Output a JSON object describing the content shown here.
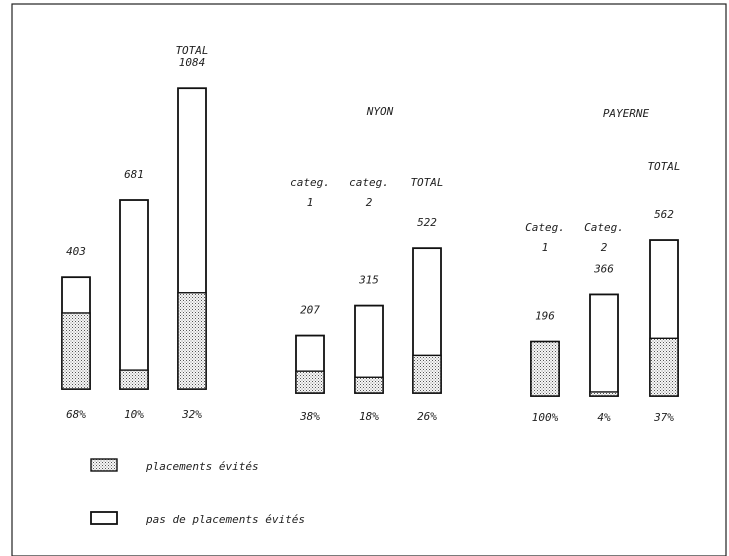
{
  "chart_data": {
    "type": "bar",
    "stacked": true,
    "legend_position": "bottom-left",
    "grid": false,
    "legend": [
      {
        "key": "avoided",
        "label": "placements évités",
        "pattern": "dotted"
      },
      {
        "key": "not_avoided",
        "label": "pas de placements évités",
        "pattern": "empty"
      }
    ],
    "groups": [
      {
        "name": "",
        "bars": [
          {
            "label": "",
            "total": 403,
            "total_label": "403",
            "percent": 68,
            "percent_label": "68%"
          },
          {
            "label": "",
            "total": 681,
            "total_label": "681",
            "percent": 10,
            "percent_label": "10%"
          },
          {
            "label": "TOTAL",
            "total": 1084,
            "total_label": "1084",
            "percent": 32,
            "percent_label": "32%"
          }
        ]
      },
      {
        "name": "NYON",
        "bars": [
          {
            "label": "categ.\n1",
            "total": 207,
            "total_label": "207",
            "percent": 38,
            "percent_label": "38%"
          },
          {
            "label": "categ.\n2",
            "total": 315,
            "total_label": "315",
            "percent": 18,
            "percent_label": "18%"
          },
          {
            "label": "TOTAL",
            "total": 522,
            "total_label": "522",
            "percent": 26,
            "percent_label": "26%"
          }
        ]
      },
      {
        "name": "PAYERNE",
        "bars": [
          {
            "label": "Categ.\n1",
            "total": 196,
            "total_label": "196",
            "percent": 100,
            "percent_label": "100%"
          },
          {
            "label": "Categ.\n2",
            "total": 366,
            "total_label": "366",
            "percent": 4,
            "percent_label": "4%"
          },
          {
            "label": "TOTAL",
            "total": 562,
            "total_label": "562",
            "percent": 37,
            "percent_label": "37%"
          }
        ]
      }
    ]
  }
}
